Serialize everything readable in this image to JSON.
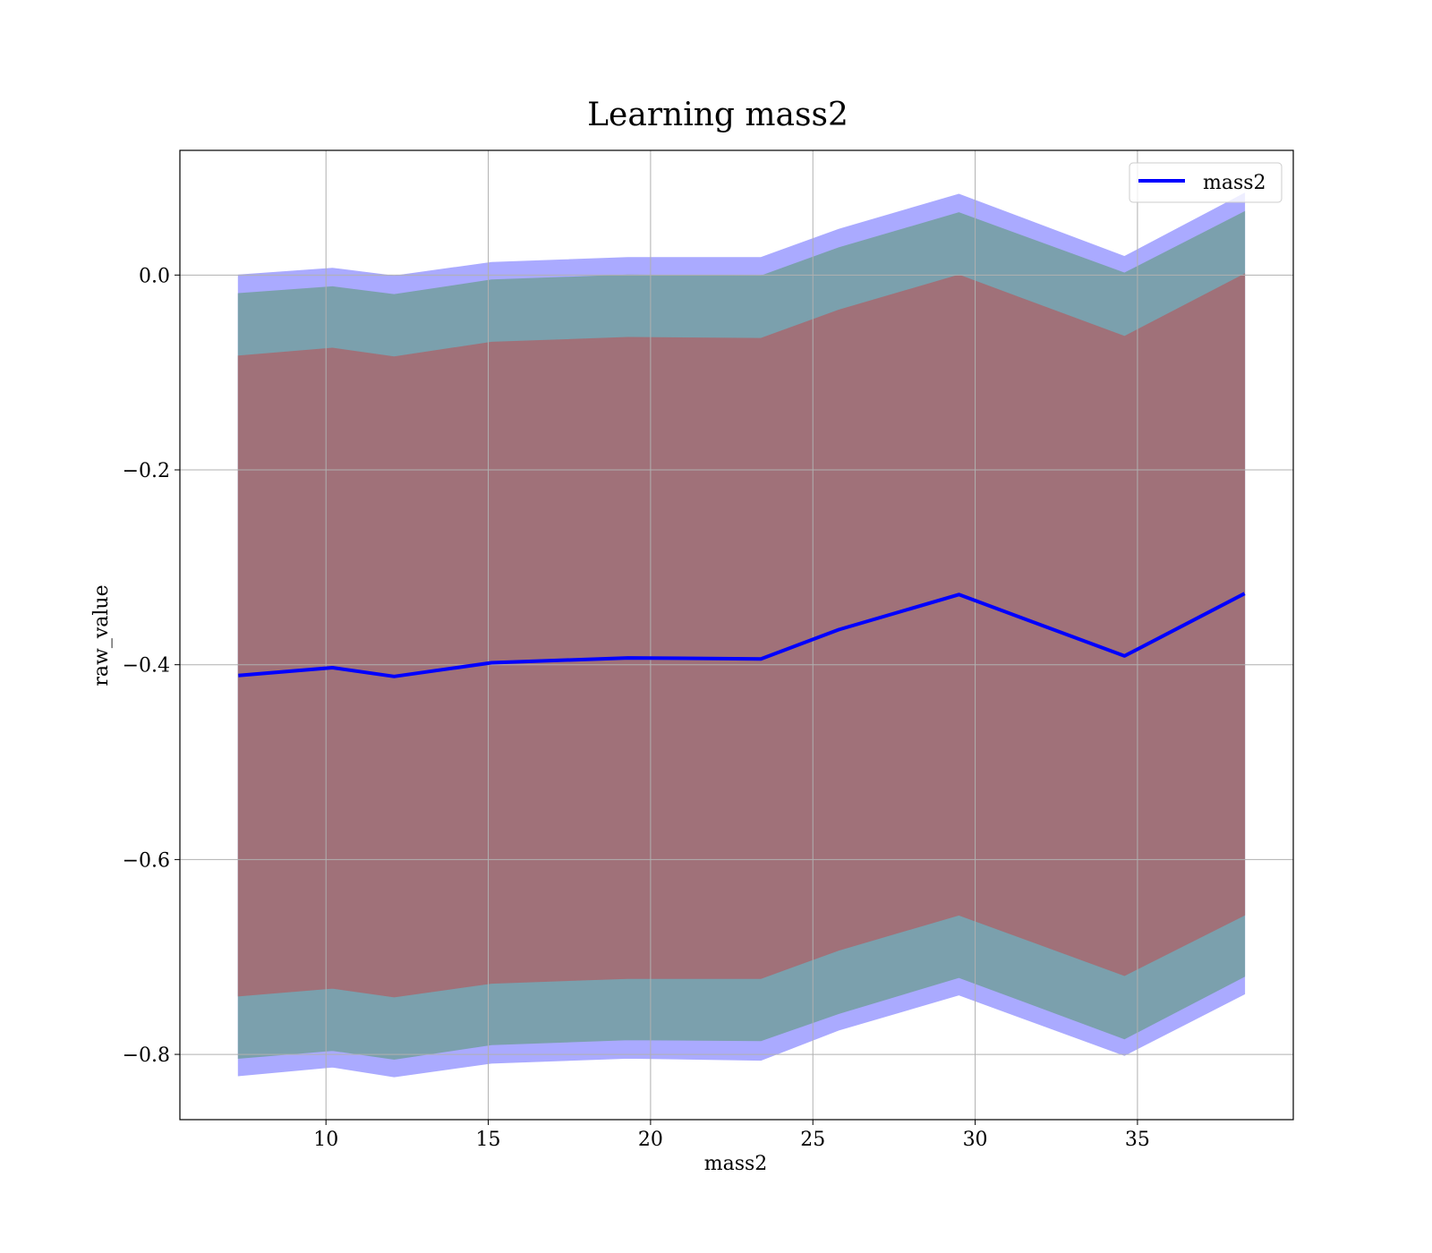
{
  "chart_data": {
    "type": "area",
    "title": "Learning mass2",
    "xlabel": "mass2",
    "ylabel": "raw_value",
    "xlim": [
      5.5,
      39.8
    ],
    "ylim": [
      -0.867,
      0.128
    ],
    "xticks": [
      10,
      15,
      20,
      25,
      30,
      35
    ],
    "xtick_labels": [
      "10",
      "15",
      "20",
      "25",
      "30",
      "35"
    ],
    "yticks": [
      0.0,
      -0.2,
      -0.4,
      -0.6,
      -0.8
    ],
    "ytick_labels": [
      "0.0",
      "−0.2",
      "−0.4",
      "−0.6",
      "−0.8"
    ],
    "grid": true,
    "legend": {
      "position": "top-right",
      "entries": [
        "mass2"
      ]
    },
    "x": [
      7.3,
      10.2,
      12.1,
      15.1,
      19.3,
      23.4,
      25.8,
      29.5,
      34.6,
      38.3
    ],
    "series": [
      {
        "name": "mass2",
        "role": "line",
        "color": "#0000ff",
        "values": [
          -0.411,
          -0.403,
          -0.412,
          -0.398,
          -0.393,
          -0.394,
          -0.364,
          -0.328,
          -0.391,
          -0.327
        ]
      }
    ],
    "bands": [
      {
        "role": "outer band",
        "color": "#aaaaff",
        "upper": [
          0.0,
          0.007,
          -0.001,
          0.013,
          0.018,
          0.018,
          0.047,
          0.083,
          0.019,
          0.084
        ],
        "lower": [
          -0.822,
          -0.813,
          -0.823,
          -0.809,
          -0.804,
          -0.806,
          -0.775,
          -0.739,
          -0.801,
          -0.738
        ]
      },
      {
        "role": "middle band",
        "color": "#7ba0ad",
        "upper": [
          -0.019,
          -0.012,
          -0.02,
          -0.005,
          0.0,
          -0.001,
          0.028,
          0.064,
          0.002,
          0.065
        ],
        "lower": [
          -0.804,
          -0.796,
          -0.805,
          -0.79,
          -0.785,
          -0.786,
          -0.758,
          -0.721,
          -0.784,
          -0.72
        ]
      },
      {
        "role": "inner band",
        "color": "#a07179",
        "upper": [
          -0.083,
          -0.075,
          -0.084,
          -0.069,
          -0.064,
          -0.065,
          -0.036,
          0.0,
          -0.063,
          0.001
        ],
        "lower": [
          -0.74,
          -0.732,
          -0.741,
          -0.727,
          -0.722,
          -0.722,
          -0.693,
          -0.657,
          -0.719,
          -0.657
        ]
      }
    ]
  }
}
